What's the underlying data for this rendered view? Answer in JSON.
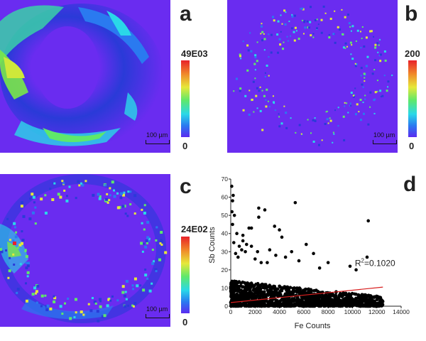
{
  "panels": {
    "a": {
      "letter": "a",
      "max": "49E03",
      "min": "0",
      "scale": "100 µm"
    },
    "b": {
      "letter": "b",
      "max": "200",
      "min": "0",
      "scale": "100 µm"
    },
    "c": {
      "letter": "c",
      "max": "24E02",
      "min": "0",
      "scale": "100 µm"
    },
    "d": {
      "letter": "d"
    }
  },
  "colors": {
    "background_map": "#6a2cf0",
    "fit_line": "#d81e1e",
    "points": "#000000"
  },
  "chart_data": {
    "type": "scatter",
    "xlabel": "Fe Counts",
    "ylabel": "Sb Counts",
    "xlim": [
      0,
      14000
    ],
    "ylim": [
      0,
      70
    ],
    "xticks": [
      "0",
      "2000",
      "4000",
      "6000",
      "8000",
      "10000",
      "12000",
      "14000"
    ],
    "yticks": [
      "0",
      "10",
      "20",
      "30",
      "40",
      "50",
      "60",
      "70"
    ],
    "annotation": "R2=0.1020",
    "fit_line": {
      "x": [
        0,
        12500
      ],
      "y": [
        2.0,
        10.5
      ]
    },
    "outliers": [
      [
        80,
        66
      ],
      [
        200,
        61
      ],
      [
        300,
        50
      ],
      [
        150,
        45
      ],
      [
        500,
        40
      ],
      [
        250,
        35
      ],
      [
        700,
        33
      ],
      [
        1000,
        36
      ],
      [
        1300,
        34
      ],
      [
        1700,
        33
      ],
      [
        1200,
        30
      ],
      [
        2300,
        54
      ],
      [
        2800,
        53
      ],
      [
        2300,
        49
      ],
      [
        5300,
        57
      ],
      [
        1500,
        43
      ],
      [
        1700,
        43
      ],
      [
        3600,
        44
      ],
      [
        4000,
        42
      ],
      [
        3200,
        31
      ],
      [
        3700,
        28
      ],
      [
        4500,
        27
      ],
      [
        5000,
        30
      ],
      [
        6200,
        34
      ],
      [
        6800,
        29
      ],
      [
        11300,
        47
      ],
      [
        600,
        27
      ],
      [
        2000,
        26
      ],
      [
        2500,
        24
      ],
      [
        4200,
        38
      ],
      [
        1000,
        39
      ],
      [
        11200,
        27
      ],
      [
        8000,
        24
      ],
      [
        9800,
        22
      ],
      [
        3000,
        24
      ],
      [
        150,
        58
      ],
      [
        100,
        52
      ],
      [
        400,
        29
      ],
      [
        900,
        31
      ],
      [
        5600,
        25
      ],
      [
        7300,
        21
      ],
      [
        10300,
        20
      ],
      [
        2200,
        30
      ]
    ],
    "cluster": {
      "x_max": 12500,
      "y_min": 0,
      "y_max": 14,
      "density": "dense"
    }
  }
}
